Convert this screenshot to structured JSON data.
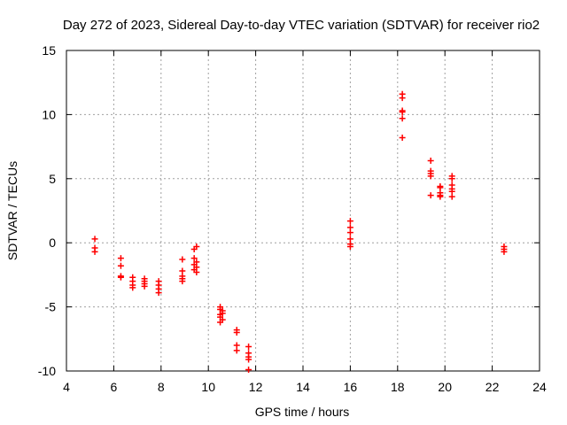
{
  "chart_data": {
    "type": "scatter",
    "title": "Day 272 of 2023, Sidereal Day-to-day VTEC variation (SDTVAR) for receiver rio2",
    "xlabel": "GPS time / hours",
    "ylabel": "SDTVAR / TECUs",
    "xlim": [
      4,
      24
    ],
    "ylim": [
      -10,
      15
    ],
    "xticks": [
      4,
      6,
      8,
      10,
      12,
      14,
      16,
      18,
      20,
      22,
      24
    ],
    "yticks": [
      -10,
      -5,
      0,
      5,
      10,
      15
    ],
    "grid": true,
    "marker": "plus",
    "color": "#ff0000",
    "series": [
      {
        "name": "SDTVAR",
        "points": [
          [
            5.2,
            0.3
          ],
          [
            5.2,
            -0.4
          ],
          [
            5.2,
            -0.7
          ],
          [
            6.3,
            -1.2
          ],
          [
            6.3,
            -1.8
          ],
          [
            6.3,
            -2.6
          ],
          [
            6.3,
            -2.7
          ],
          [
            6.8,
            -2.7
          ],
          [
            6.8,
            -3.0
          ],
          [
            6.8,
            -3.3
          ],
          [
            6.8,
            -3.5
          ],
          [
            7.3,
            -2.8
          ],
          [
            7.3,
            -3.0
          ],
          [
            7.3,
            -3.2
          ],
          [
            7.3,
            -3.4
          ],
          [
            7.9,
            -3.0
          ],
          [
            7.9,
            -3.3
          ],
          [
            7.9,
            -3.6
          ],
          [
            7.9,
            -3.9
          ],
          [
            8.9,
            -1.3
          ],
          [
            8.9,
            -2.2
          ],
          [
            8.9,
            -2.6
          ],
          [
            8.9,
            -2.8
          ],
          [
            8.9,
            -3.0
          ],
          [
            9.4,
            -0.5
          ],
          [
            9.5,
            -0.3
          ],
          [
            9.4,
            -1.2
          ],
          [
            9.5,
            -1.5
          ],
          [
            9.4,
            -1.7
          ],
          [
            9.5,
            -1.9
          ],
          [
            9.4,
            -2.1
          ],
          [
            9.5,
            -2.3
          ],
          [
            10.5,
            -5.0
          ],
          [
            10.5,
            -5.2
          ],
          [
            10.6,
            -5.5
          ],
          [
            10.5,
            -5.8
          ],
          [
            10.6,
            -6.0
          ],
          [
            10.5,
            -6.2
          ],
          [
            10.6,
            -5.3
          ],
          [
            10.5,
            -5.6
          ],
          [
            11.2,
            -6.8
          ],
          [
            11.2,
            -7.0
          ],
          [
            11.2,
            -8.0
          ],
          [
            11.2,
            -8.4
          ],
          [
            11.7,
            -8.1
          ],
          [
            11.7,
            -8.6
          ],
          [
            11.7,
            -8.9
          ],
          [
            11.7,
            -9.1
          ],
          [
            11.7,
            -9.9
          ],
          [
            16.0,
            1.7
          ],
          [
            16.0,
            1.2
          ],
          [
            16.0,
            0.8
          ],
          [
            16.0,
            0.3
          ],
          [
            16.0,
            -0.1
          ],
          [
            16.0,
            -0.3
          ],
          [
            18.2,
            11.6
          ],
          [
            18.2,
            11.3
          ],
          [
            18.2,
            10.3
          ],
          [
            18.2,
            10.2
          ],
          [
            18.2,
            9.7
          ],
          [
            18.2,
            8.2
          ],
          [
            19.4,
            6.4
          ],
          [
            19.4,
            5.6
          ],
          [
            19.4,
            5.4
          ],
          [
            19.4,
            5.2
          ],
          [
            19.4,
            3.7
          ],
          [
            19.8,
            4.4
          ],
          [
            19.8,
            4.3
          ],
          [
            19.8,
            3.9
          ],
          [
            19.8,
            3.7
          ],
          [
            19.8,
            3.6
          ],
          [
            20.3,
            5.2
          ],
          [
            20.3,
            5.0
          ],
          [
            20.3,
            4.5
          ],
          [
            20.3,
            4.2
          ],
          [
            20.3,
            4.0
          ],
          [
            20.3,
            3.6
          ],
          [
            22.5,
            -0.3
          ],
          [
            22.5,
            -0.5
          ],
          [
            22.5,
            -0.7
          ]
        ]
      }
    ]
  }
}
